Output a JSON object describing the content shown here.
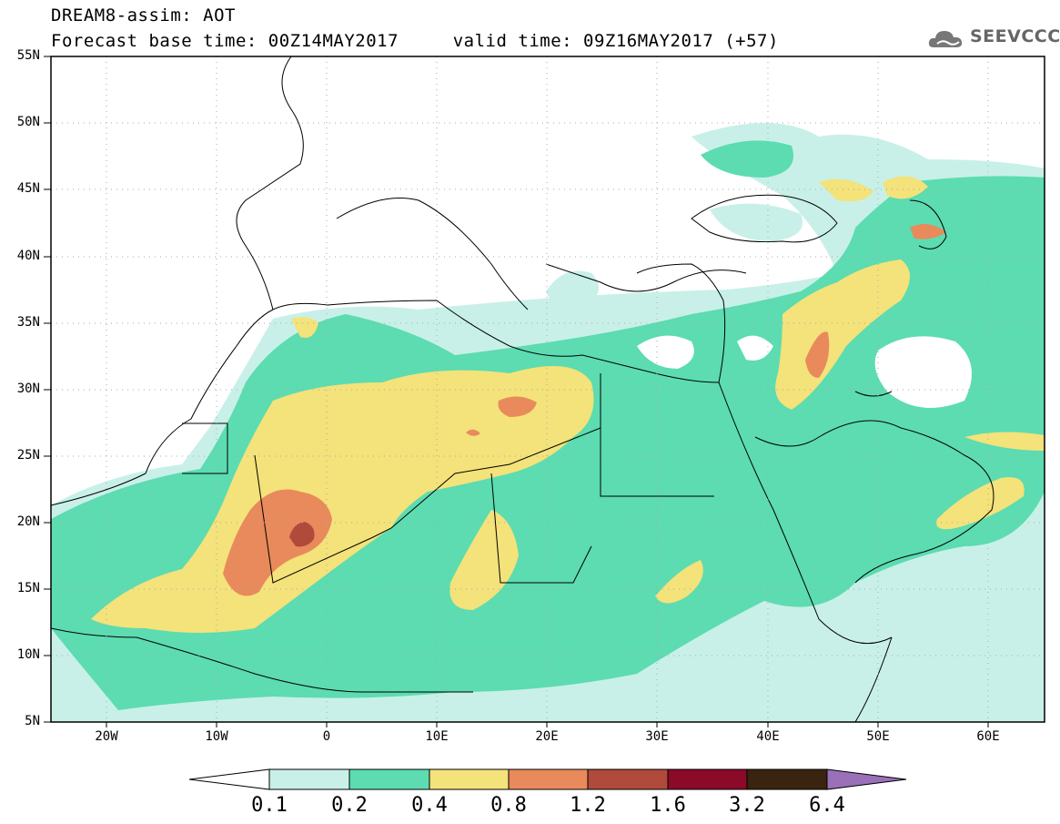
{
  "title": {
    "line1": "DREAM8-assim: AOT",
    "line2": "Forecast base time: 00Z14MAY2017     valid time: 09Z16MAY2017 (+57)"
  },
  "logo": {
    "text": "SEEVCCC",
    "icon": "cloud-logo-icon"
  },
  "map": {
    "lon_range": [
      -25,
      65
    ],
    "lat_range": [
      5,
      55
    ],
    "lat_ticks": [
      "55N",
      "50N",
      "45N",
      "40N",
      "35N",
      "30N",
      "25N",
      "20N",
      "15N",
      "10N",
      "5N"
    ],
    "lon_ticks": [
      "20W",
      "10W",
      "0",
      "10E",
      "20E",
      "30E",
      "40E",
      "50E",
      "60E"
    ],
    "grid": "dotted"
  },
  "colorbar": {
    "labels": [
      "0.1",
      "0.2",
      "0.4",
      "0.8",
      "1.2",
      "1.6",
      "3.2",
      "6.4"
    ],
    "colors": [
      "#ffffff",
      "#c8f0e8",
      "#5cdcb0",
      "#f4e27a",
      "#e88a5c",
      "#b04a3a",
      "#8a0a28",
      "#3a2410",
      "#9a70b8"
    ]
  },
  "colors": {
    "c1": "#c8f0e8",
    "c2": "#5cdcb0",
    "c3": "#f4e27a",
    "c4": "#e88a5c",
    "c5": "#b04a3a"
  }
}
